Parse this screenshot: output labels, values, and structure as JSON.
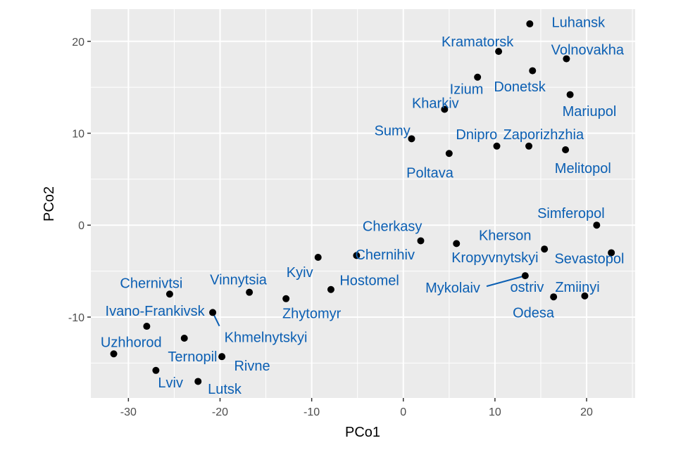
{
  "chart_data": {
    "type": "scatter",
    "title": "",
    "xlabel": "PCo1",
    "ylabel": "PCo2",
    "xlim": [
      -34.1,
      25.3
    ],
    "ylim": [
      -18.8,
      23.5
    ],
    "x_ticks": [
      -30,
      -20,
      -10,
      0,
      10,
      20
    ],
    "y_ticks": [
      -10,
      0,
      10,
      20
    ],
    "grid": true,
    "colors": {
      "panel": "#ebebeb",
      "grid": "#ffffff",
      "point": "#000000",
      "label": "#0b5fb3"
    },
    "points": [
      {
        "name": "Luhansk",
        "x": 13.8,
        "y": 21.9
      },
      {
        "name": "Kramatorsk",
        "x": 10.4,
        "y": 18.9
      },
      {
        "name": "Volnovakha",
        "x": 17.8,
        "y": 18.1
      },
      {
        "name": "Donetsk",
        "x": 14.1,
        "y": 16.8
      },
      {
        "name": "Izium",
        "x": 8.1,
        "y": 16.1
      },
      {
        "name": "Mariupol",
        "x": 18.2,
        "y": 14.2
      },
      {
        "name": "Kharkiv",
        "x": 4.5,
        "y": 12.6
      },
      {
        "name": "Sumy",
        "x": 0.9,
        "y": 9.4
      },
      {
        "name": "Dnipro",
        "x": 10.2,
        "y": 8.6
      },
      {
        "name": "Zaporizhzhia",
        "x": 13.7,
        "y": 8.6
      },
      {
        "name": "Melitopol",
        "x": 17.7,
        "y": 8.2
      },
      {
        "name": "Poltava",
        "x": 5.0,
        "y": 7.8
      },
      {
        "name": "Simferopol",
        "x": 21.1,
        "y": 0.0
      },
      {
        "name": "Cherkasy",
        "x": 1.9,
        "y": -1.7
      },
      {
        "name": "Kherson",
        "x": 5.8,
        "y": -2.0
      },
      {
        "name": "Kropyvnytskyi",
        "x": 15.4,
        "y": -2.6
      },
      {
        "name": "Sevastopol",
        "x": 22.7,
        "y": -3.0
      },
      {
        "name": "Chernihiv",
        "x": -5.1,
        "y": -3.3
      },
      {
        "name": "Kyiv",
        "x": -9.3,
        "y": -3.5
      },
      {
        "name": "Mykolaiv",
        "x": 13.3,
        "y": -5.5
      },
      {
        "name": "Hostomel",
        "x": -7.9,
        "y": -7.0
      },
      {
        "name": "Vinnytsia",
        "x": -16.8,
        "y": -7.3
      },
      {
        "name": "Chernivtsi",
        "x": -25.5,
        "y": -7.5
      },
      {
        "name": "Zmiinyi ostriv",
        "x": 19.8,
        "y": -7.7
      },
      {
        "name": "Odesa",
        "x": 16.4,
        "y": -7.8
      },
      {
        "name": "Zhytomyr",
        "x": -12.8,
        "y": -8.0
      },
      {
        "name": "Khmelnytskyi",
        "x": -20.8,
        "y": -9.5
      },
      {
        "name": "Ivano-Frankivsk",
        "x": -28.0,
        "y": -11.0
      },
      {
        "name": "Ternopil",
        "x": -23.9,
        "y": -12.3
      },
      {
        "name": "Uzhhorod",
        "x": -31.6,
        "y": -14.0
      },
      {
        "name": "Rivne",
        "x": -19.8,
        "y": -14.3
      },
      {
        "name": "Lviv",
        "x": -27.0,
        "y": -15.8
      },
      {
        "name": "Lutsk",
        "x": -22.4,
        "y": -17.0
      }
    ],
    "labels": [
      {
        "text": "Luhansk",
        "for": "Luhansk",
        "x": 19.1,
        "y": 22.1,
        "anchor": "middle",
        "line": false
      },
      {
        "text": "Kramatorsk",
        "for": "Kramatorsk",
        "x": 8.1,
        "y": 20.0,
        "anchor": "middle",
        "line": false
      },
      {
        "text": "Volnovakha",
        "for": "Volnovakha",
        "x": 20.1,
        "y": 19.1,
        "anchor": "middle",
        "line": false
      },
      {
        "text": "Izium",
        "for": "Izium",
        "x": 6.9,
        "y": 14.8,
        "anchor": "middle",
        "line": false
      },
      {
        "text": "Donetsk",
        "for": "Donetsk",
        "x": 12.7,
        "y": 15.1,
        "anchor": "middle",
        "line": false
      },
      {
        "text": "Kharkiv",
        "for": "Kharkiv",
        "x": 3.5,
        "y": 13.3,
        "anchor": "middle",
        "line": false
      },
      {
        "text": "Mariupol",
        "for": "Mariupol",
        "x": 20.3,
        "y": 12.4,
        "anchor": "middle",
        "line": false
      },
      {
        "text": "Sumy",
        "for": "Sumy",
        "x": -1.2,
        "y": 10.3,
        "anchor": "middle",
        "line": false
      },
      {
        "text": "Dnipro",
        "for": "Dnipro",
        "x": 8.0,
        "y": 9.9,
        "anchor": "middle",
        "line": false
      },
      {
        "text": "Zaporizhzhia",
        "for": "Zaporizhzhia",
        "x": 15.3,
        "y": 9.9,
        "anchor": "middle",
        "line": false
      },
      {
        "text": "Poltava",
        "for": "Poltava",
        "x": 2.9,
        "y": 5.7,
        "anchor": "middle",
        "line": false
      },
      {
        "text": "Melitopol",
        "for": "Melitopol",
        "x": 19.6,
        "y": 6.2,
        "anchor": "middle",
        "line": false
      },
      {
        "text": "Simferopol",
        "for": "Simferopol",
        "x": 18.3,
        "y": 1.3,
        "anchor": "middle",
        "line": false
      },
      {
        "text": "Cherkasy",
        "for": "Cherkasy",
        "x": -1.2,
        "y": -0.1,
        "anchor": "middle",
        "line": false
      },
      {
        "text": "Kherson",
        "for": "Kherson",
        "x": 11.1,
        "y": -1.1,
        "anchor": "middle",
        "line": false
      },
      {
        "text": "Chernihiv",
        "for": "Chernihiv",
        "x": -2.0,
        "y": -3.2,
        "anchor": "middle",
        "line": false
      },
      {
        "text": "Kropyvnytskyi",
        "for": "Kropyvnytskyi",
        "x": 10.0,
        "y": -3.5,
        "anchor": "middle",
        "line": false
      },
      {
        "text": "Sevastopol",
        "for": "Sevastopol",
        "x": 20.3,
        "y": -3.6,
        "anchor": "middle",
        "line": false
      },
      {
        "text": "Kyiv",
        "for": "Kyiv",
        "x": -11.3,
        "y": -5.1,
        "anchor": "middle",
        "line": false
      },
      {
        "text": "Hostomel",
        "for": "Hostomel",
        "x": -3.7,
        "y": -6.0,
        "anchor": "middle",
        "line": false
      },
      {
        "text": "Vinnytsia",
        "for": "Vinnytsia",
        "x": -18.0,
        "y": -5.9,
        "anchor": "middle",
        "line": false
      },
      {
        "text": "Chernivtsi",
        "for": "Chernivtsi",
        "x": -27.5,
        "y": -6.3,
        "anchor": "middle",
        "line": false
      },
      {
        "text": "Mykolaiv",
        "for": "Mykolaiv",
        "x": 5.4,
        "y": -6.8,
        "anchor": "middle",
        "line": true
      },
      {
        "text": "ostriv",
        "for": "Zmiinyi ostriv",
        "x": 13.5,
        "y": -6.7,
        "anchor": "middle",
        "line": false
      },
      {
        "text": "Zmiinyi",
        "for": "Zmiinyi ostriv",
        "x": 19.0,
        "y": -6.7,
        "anchor": "middle",
        "line": false
      },
      {
        "text": "Zhytomyr",
        "for": "Zhytomyr",
        "x": -10.0,
        "y": -9.6,
        "anchor": "middle",
        "line": false
      },
      {
        "text": "Odesa",
        "for": "Odesa",
        "x": 14.2,
        "y": -9.5,
        "anchor": "middle",
        "line": false
      },
      {
        "text": "Ivano-Frankivsk",
        "for": "Ivano-Frankivsk",
        "x": -27.1,
        "y": -9.3,
        "anchor": "middle",
        "line": false
      },
      {
        "text": "Khmelnytskyi",
        "for": "Khmelnytskyi",
        "x": -15.0,
        "y": -12.2,
        "anchor": "middle",
        "line": true
      },
      {
        "text": "Uzhhorod",
        "for": "Uzhhorod",
        "x": -29.7,
        "y": -12.7,
        "anchor": "middle",
        "line": false
      },
      {
        "text": "Ternopil",
        "for": "Ternopil",
        "x": -23.0,
        "y": -14.3,
        "anchor": "middle",
        "line": false
      },
      {
        "text": "Rivne",
        "for": "Rivne",
        "x": -16.5,
        "y": -15.3,
        "anchor": "middle",
        "line": false
      },
      {
        "text": "Lviv",
        "for": "Lviv",
        "x": -25.4,
        "y": -17.1,
        "anchor": "middle",
        "line": false
      },
      {
        "text": "Lutsk",
        "for": "Lutsk",
        "x": -19.5,
        "y": -17.8,
        "anchor": "middle",
        "line": false
      }
    ]
  }
}
